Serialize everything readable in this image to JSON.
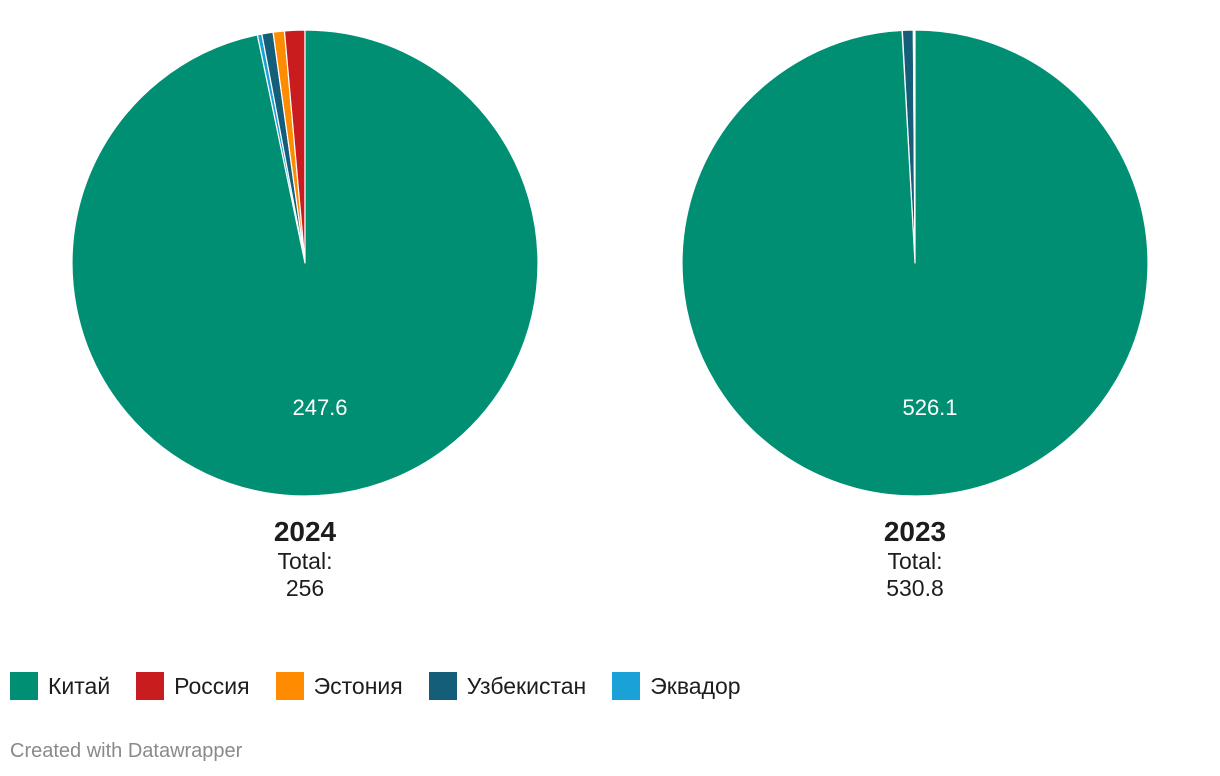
{
  "chart_data": [
    {
      "type": "pie",
      "title": "2024",
      "total_label": "Total:",
      "total_value": "256",
      "slices": [
        {
          "name": "Китай",
          "value": 247.6,
          "label": "247.6"
        },
        {
          "name": "Россия",
          "value": 3.6,
          "label": ""
        },
        {
          "name": "Эстония",
          "value": 2.0,
          "label": ""
        },
        {
          "name": "Узбекистан",
          "value": 2.0,
          "label": ""
        },
        {
          "name": "Эквадор",
          "value": 0.8,
          "label": ""
        }
      ]
    },
    {
      "type": "pie",
      "title": "2023",
      "total_label": "Total:",
      "total_value": "530.8",
      "slices": [
        {
          "name": "Китай",
          "value": 526.1,
          "label": "526.1"
        },
        {
          "name": "Россия",
          "value": 0.1,
          "label": ""
        },
        {
          "name": "Эстония",
          "value": 0.5,
          "label": ""
        },
        {
          "name": "Узбекистан",
          "value": 4.0,
          "label": ""
        },
        {
          "name": "Эквадор",
          "value": 0.1,
          "label": ""
        }
      ]
    }
  ],
  "legend": {
    "items": [
      {
        "label": "Китай",
        "color": "#008f73"
      },
      {
        "label": "Россия",
        "color": "#c81c1e"
      },
      {
        "label": "Эстония",
        "color": "#ff8c00"
      },
      {
        "label": "Узбекистан",
        "color": "#155e7a"
      },
      {
        "label": "Эквадор",
        "color": "#1aa1d6"
      }
    ]
  },
  "footer": {
    "credit": "Created with Datawrapper"
  }
}
